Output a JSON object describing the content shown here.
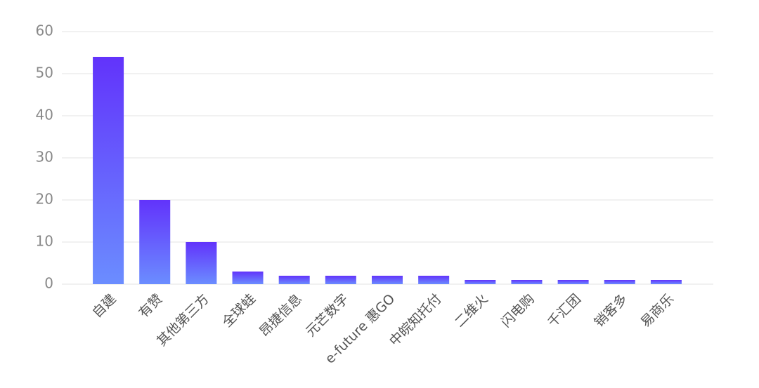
{
  "chart_data": {
    "type": "bar",
    "categories": [
      "自建",
      "有赞",
      "其他第三方",
      "全球蛙",
      "昂捷信息",
      "元芒数字",
      "e-future 惠GO",
      "中皖知托付",
      "二维火",
      "闪电购",
      "千汇团",
      "销客多",
      "易商乐"
    ],
    "values": [
      54,
      20,
      10,
      3,
      2,
      2,
      2,
      2,
      1,
      1,
      1,
      1,
      1
    ],
    "color": {
      "top": "#6233fb",
      "bottom": "#6b8dff"
    },
    "ylim": [
      0,
      60
    ],
    "yticks": [
      0,
      10,
      20,
      30,
      40,
      50,
      60
    ],
    "grid": true
  }
}
